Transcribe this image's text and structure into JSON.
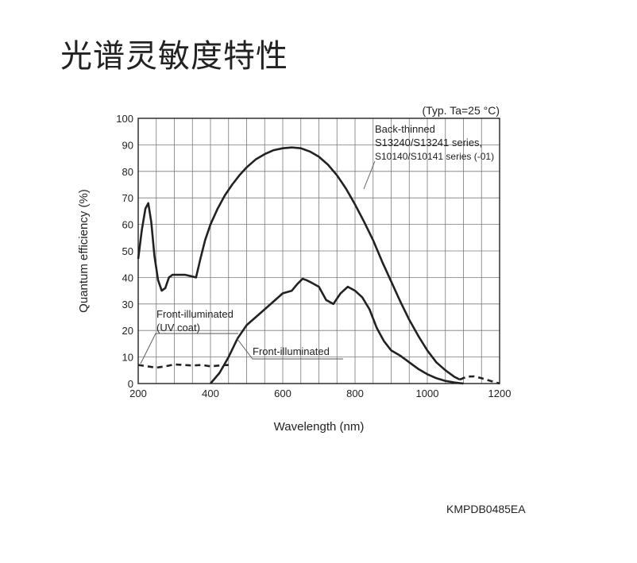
{
  "page": {
    "title": "光谱灵敏度特性",
    "doc_code": "KMPDB0485EA"
  },
  "chart_data": {
    "type": "line",
    "title": "",
    "condition_note": "(Typ. Ta=25 °C)",
    "xlabel": "Wavelength (nm)",
    "ylabel": "Quantum efficiency (%)",
    "xlim": [
      200,
      1200
    ],
    "ylim": [
      0,
      100
    ],
    "x_ticks": [
      200,
      400,
      600,
      800,
      1000,
      1200
    ],
    "y_ticks": [
      0,
      10,
      20,
      30,
      40,
      50,
      60,
      70,
      80,
      90,
      100
    ],
    "x_grid_step": 50,
    "y_grid_step": 10,
    "grid": true,
    "series": [
      {
        "name": "Back-thinned S13240/S13241 series, S10140/S10141 series (-01)",
        "style": "solid",
        "color": "#222222",
        "x": [
          200,
          210,
          220,
          228,
          236,
          245,
          255,
          265,
          275,
          285,
          295,
          310,
          330,
          345,
          360,
          372,
          385,
          400,
          420,
          440,
          460,
          480,
          500,
          525,
          550,
          575,
          600,
          625,
          650,
          675,
          700,
          725,
          750,
          775,
          800,
          825,
          850,
          875,
          900,
          925,
          950,
          975,
          1000,
          1025,
          1050,
          1075,
          1090
        ],
        "y": [
          47,
          58,
          66,
          68,
          61,
          48,
          39,
          35,
          36,
          40,
          41,
          41,
          41,
          40.5,
          40,
          47,
          54,
          60,
          66,
          71,
          75,
          78.5,
          81.5,
          84.5,
          86.5,
          88,
          88.7,
          89,
          88.7,
          87.5,
          85.5,
          82.5,
          78.5,
          73.5,
          67.5,
          61,
          54,
          46,
          38.5,
          31,
          24,
          18,
          12.5,
          8,
          5,
          2.5,
          1.5
        ]
      },
      {
        "name": "Back-thinned S13240/S13241 series, S10140/S10141 series (-01) (extrapolated)",
        "style": "dashed",
        "color": "#222222",
        "x": [
          1090,
          1110,
          1130,
          1150,
          1170,
          1190,
          1200
        ],
        "y": [
          1.5,
          2.6,
          2.7,
          2.0,
          1.2,
          0.4,
          0
        ]
      },
      {
        "name": "Front-illuminated",
        "style": "solid",
        "color": "#222222",
        "x": [
          400,
          425,
          450,
          475,
          500,
          525,
          550,
          575,
          600,
          625,
          640,
          655,
          665,
          680,
          700,
          720,
          740,
          760,
          780,
          800,
          820,
          840,
          860,
          880,
          900,
          925,
          950,
          975,
          1000,
          1025,
          1050,
          1075,
          1100
        ],
        "y": [
          0,
          4,
          10,
          17,
          22,
          25,
          28,
          31,
          34,
          35,
          37.5,
          39.5,
          39,
          38,
          36.5,
          31.5,
          30,
          34,
          36.5,
          35,
          32.5,
          28,
          21,
          16,
          12.5,
          10.5,
          8,
          5.5,
          3.5,
          2,
          1,
          0.4,
          0
        ]
      },
      {
        "name": "Front-illuminated (UV coat)",
        "style": "dashed",
        "color": "#222222",
        "x": [
          200,
          225,
          250,
          275,
          300,
          325,
          350,
          375,
          400,
          425,
          450
        ],
        "y": [
          7,
          6.5,
          6,
          6.5,
          7.2,
          7,
          6.8,
          7,
          6.5,
          6.8,
          7
        ]
      }
    ],
    "annotations": [
      {
        "lines": [
          "Back-thinned",
          "S13240/S13241 series,",
          "S10140/S10141 series (-01)"
        ],
        "points_to": [
          818,
          72
        ]
      },
      {
        "lines": [
          "Front-illuminated",
          "(UV coat)"
        ],
        "points_to": [
          207,
          7
        ]
      },
      {
        "lines": [
          "Front-illuminated"
        ],
        "points_to": [
          492,
          18
        ]
      }
    ]
  }
}
